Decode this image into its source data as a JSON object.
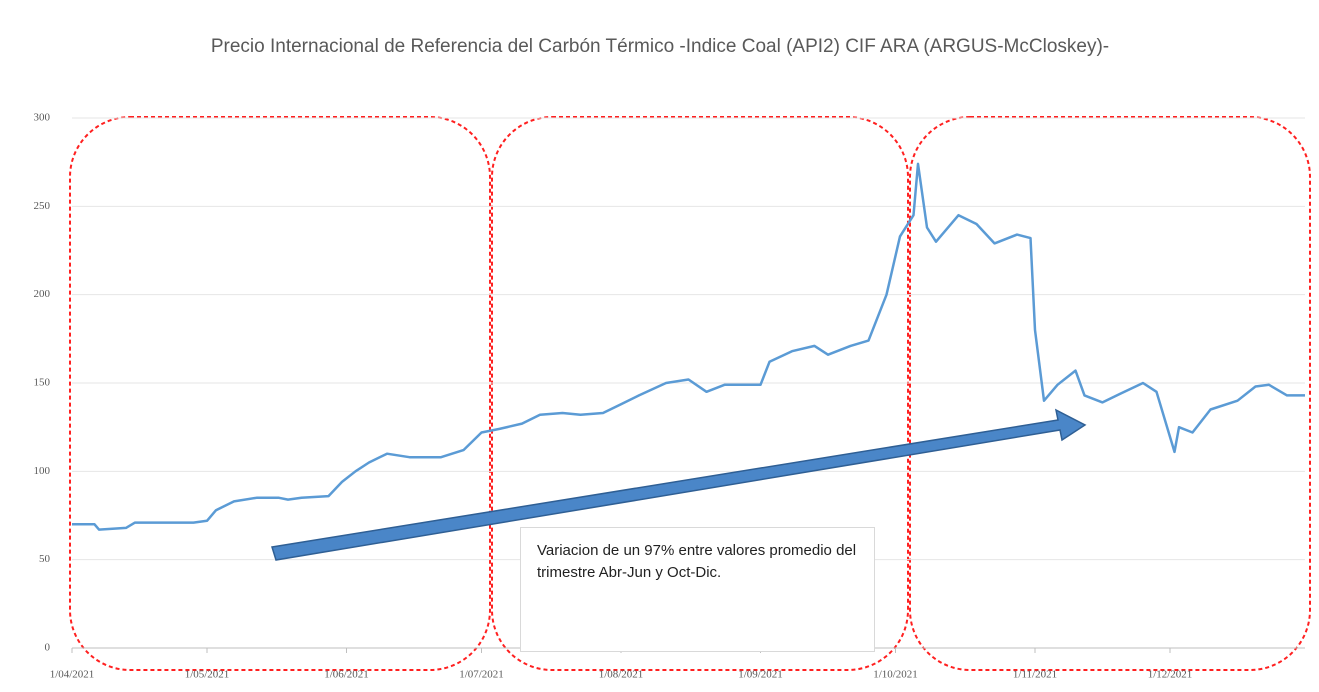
{
  "chart_data": {
    "type": "line",
    "title": "Precio Internacional de Referencia del Carbón Térmico -Indice Coal (API2) CIF ARA (ARGUS-McCloskey)-",
    "annotation": "Variacion de un 97% entre valores promedio del trimestre Abr-Jun y Oct-Dic.",
    "x": [
      "2021-04-01",
      "2021-04-06",
      "2021-04-07",
      "2021-04-13",
      "2021-04-15",
      "2021-04-28",
      "2021-05-01",
      "2021-05-03",
      "2021-05-07",
      "2021-05-12",
      "2021-05-17",
      "2021-05-19",
      "2021-05-22",
      "2021-05-28",
      "2021-05-31",
      "2021-06-03",
      "2021-06-06",
      "2021-06-10",
      "2021-06-15",
      "2021-06-22",
      "2021-06-27",
      "2021-07-01",
      "2021-07-05",
      "2021-07-10",
      "2021-07-14",
      "2021-07-19",
      "2021-07-23",
      "2021-07-28",
      "2021-08-01",
      "2021-08-05",
      "2021-08-11",
      "2021-08-16",
      "2021-08-20",
      "2021-08-24",
      "2021-09-01",
      "2021-09-03",
      "2021-09-08",
      "2021-09-13",
      "2021-09-16",
      "2021-09-21",
      "2021-09-25",
      "2021-09-29",
      "2021-10-02",
      "2021-10-05",
      "2021-10-06",
      "2021-10-08",
      "2021-10-10",
      "2021-10-15",
      "2021-10-19",
      "2021-10-23",
      "2021-10-28",
      "2021-10-31",
      "2021-11-01",
      "2021-11-03",
      "2021-11-06",
      "2021-11-10",
      "2021-11-12",
      "2021-11-16",
      "2021-11-20",
      "2021-11-25",
      "2021-11-28",
      "2021-12-02",
      "2021-12-03",
      "2021-12-06",
      "2021-12-10",
      "2021-12-16",
      "2021-12-20",
      "2021-12-23",
      "2021-12-27",
      "2021-12-31"
    ],
    "series": [
      {
        "color": "#5b9bd5",
        "values": [
          70,
          70,
          67,
          68,
          71,
          71,
          72,
          78,
          83,
          85,
          85,
          84,
          85,
          86,
          94,
          100,
          105,
          110,
          108,
          108,
          112,
          122,
          124,
          127,
          132,
          133,
          132,
          133,
          138,
          143,
          150,
          152,
          145,
          149,
          149,
          162,
          168,
          171,
          166,
          171,
          174,
          200,
          233,
          245,
          274,
          238,
          230,
          245,
          240,
          229,
          234,
          232,
          180,
          140,
          149,
          157,
          143,
          139,
          144,
          150,
          145,
          111,
          125,
          122,
          135,
          140,
          148,
          149,
          143,
          143
        ]
      }
    ],
    "xlim": [
      "2021-04-01",
      "2021-12-31"
    ],
    "xticks": [
      {
        "value": "2021-04-01",
        "label": "1/04/2021"
      },
      {
        "value": "2021-05-01",
        "label": "1/05/2021"
      },
      {
        "value": "2021-06-01",
        "label": "1/06/2021"
      },
      {
        "value": "2021-07-01",
        "label": "1/07/2021"
      },
      {
        "value": "2021-08-01",
        "label": "1/08/2021"
      },
      {
        "value": "2021-09-01",
        "label": "1/09/2021"
      },
      {
        "value": "2021-10-01",
        "label": "1/10/2021"
      },
      {
        "value": "2021-11-01",
        "label": "1/11/2021"
      },
      {
        "value": "2021-12-01",
        "label": "1/12/2021"
      }
    ],
    "ylim": [
      0,
      300
    ],
    "yticks": [
      0,
      50,
      100,
      150,
      200,
      250,
      300
    ],
    "grid": true
  }
}
